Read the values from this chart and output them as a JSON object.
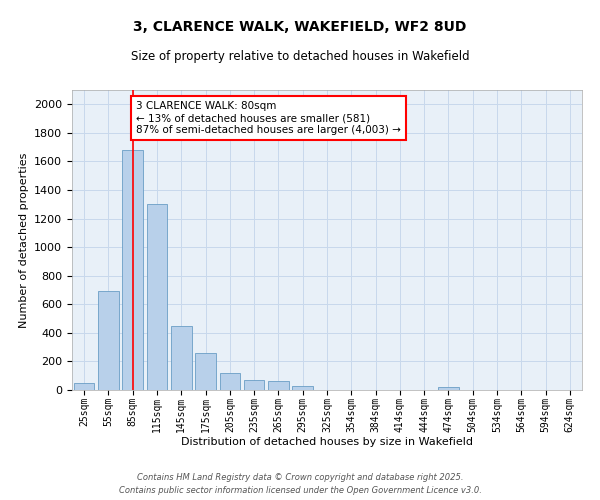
{
  "title": "3, CLARENCE WALK, WAKEFIELD, WF2 8UD",
  "subtitle": "Size of property relative to detached houses in Wakefield",
  "xlabel": "Distribution of detached houses by size in Wakefield",
  "ylabel": "Number of detached properties",
  "categories": [
    "25sqm",
    "55sqm",
    "85sqm",
    "115sqm",
    "145sqm",
    "175sqm",
    "205sqm",
    "235sqm",
    "265sqm",
    "295sqm",
    "325sqm",
    "354sqm",
    "384sqm",
    "414sqm",
    "444sqm",
    "474sqm",
    "504sqm",
    "534sqm",
    "564sqm",
    "594sqm",
    "624sqm"
  ],
  "values": [
    50,
    690,
    1680,
    1300,
    450,
    260,
    120,
    70,
    60,
    30,
    0,
    0,
    0,
    0,
    0,
    20,
    0,
    0,
    0,
    0,
    0
  ],
  "bar_color": "#b8d0ea",
  "bar_edge_color": "#6a9ec5",
  "grid_color": "#c8d8ec",
  "background_color": "#e8f0f8",
  "red_line_index": 2,
  "annotation_text": "3 CLARENCE WALK: 80sqm\n← 13% of detached houses are smaller (581)\n87% of semi-detached houses are larger (4,003) →",
  "annotation_box_color": "white",
  "annotation_box_edge_color": "red",
  "ylim": [
    0,
    2100
  ],
  "yticks": [
    0,
    200,
    400,
    600,
    800,
    1000,
    1200,
    1400,
    1600,
    1800,
    2000
  ],
  "footer_line1": "Contains HM Land Registry data © Crown copyright and database right 2025.",
  "footer_line2": "Contains public sector information licensed under the Open Government Licence v3.0."
}
